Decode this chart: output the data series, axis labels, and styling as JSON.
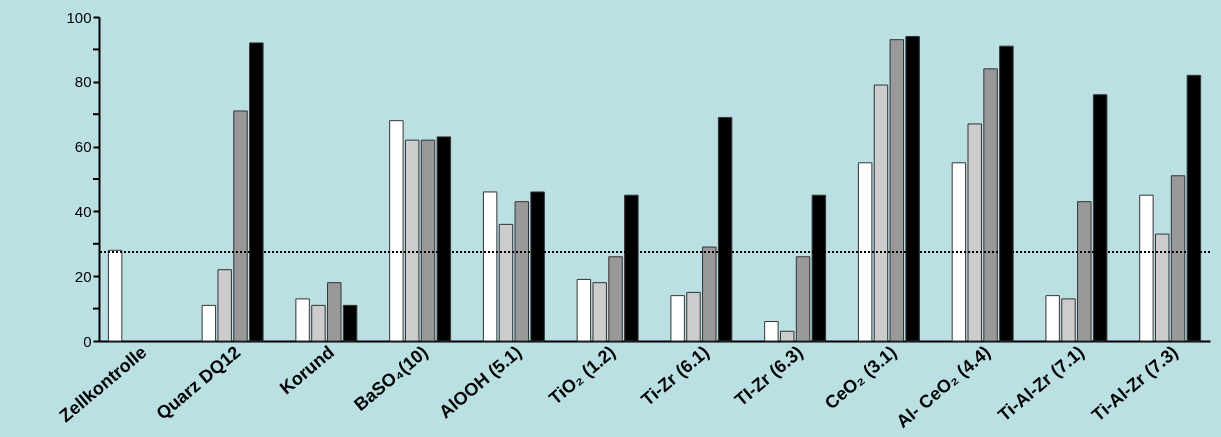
{
  "chart_data": {
    "type": "bar",
    "categories": [
      "Zellkontrolle",
      "Quarz DQ12",
      "Korund",
      "BaSO₄(10)",
      "AlOOH (5.1)",
      "TiO₂ (1.2)",
      "Ti-Zr (6.1)",
      "TI-Zr (6.3)",
      "CeO₂ (3.1)",
      "Al- CeO₂ (4.4)",
      "Ti-Al-Zr (7.1)",
      "Ti-Al-Zr (7.3)"
    ],
    "series": [
      {
        "color": "#ffffff",
        "values": [
          28,
          11,
          13,
          68,
          46,
          19,
          14,
          6,
          55,
          55,
          14,
          45
        ]
      },
      {
        "color": "#cccccc",
        "values": [
          null,
          22,
          11,
          62,
          36,
          18,
          15,
          3,
          79,
          67,
          13,
          33
        ]
      },
      {
        "color": "#999999",
        "values": [
          null,
          71,
          18,
          62,
          43,
          26,
          29,
          26,
          93,
          84,
          43,
          51
        ]
      },
      {
        "color": "#000000",
        "values": [
          null,
          92,
          11,
          63,
          46,
          45,
          69,
          45,
          94,
          91,
          76,
          82
        ]
      }
    ],
    "ylim": [
      0,
      100
    ],
    "yticks": [
      0,
      {
        "value": 10,
        "label": null
      },
      20,
      {
        "value": 30,
        "label": null
      },
      40,
      {
        "value": 50,
        "label": null
      },
      60,
      {
        "value": 70,
        "label": null
      },
      80,
      {
        "value": 90,
        "label": null
      },
      100
    ],
    "ref_lines": [
      {
        "axis": "y",
        "value": 27.5,
        "line_style": "dotted",
        "color": "#000000"
      }
    ],
    "grid": false,
    "legend": false
  }
}
